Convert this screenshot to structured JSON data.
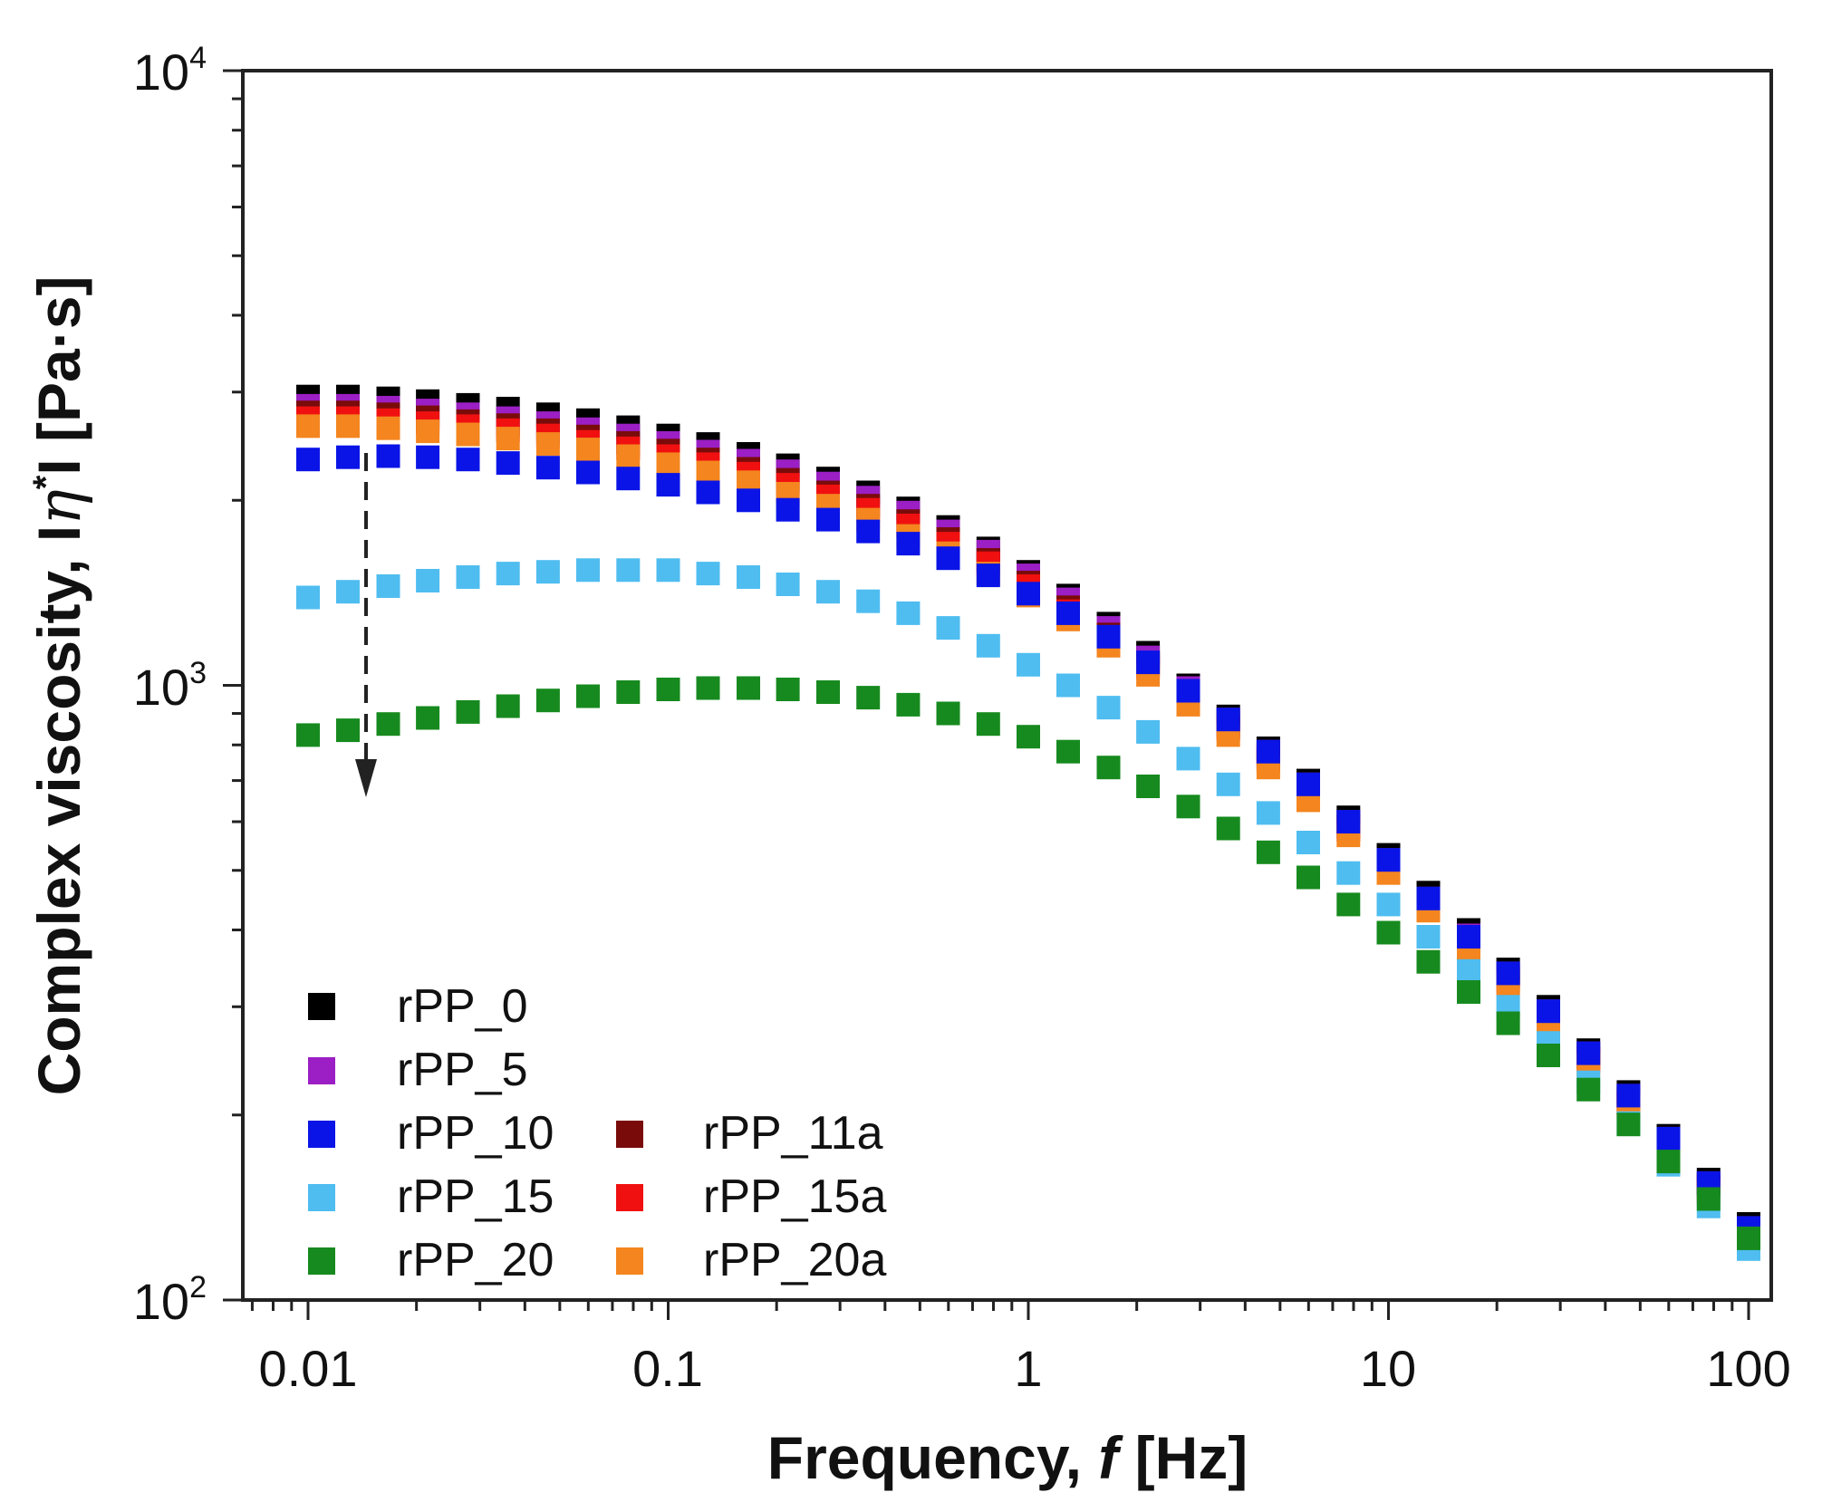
{
  "chart_data": {
    "type": "scatter",
    "xscale": "log",
    "yscale": "log",
    "xlim": [
      0.007,
      110
    ],
    "ylim": [
      100,
      10000
    ],
    "xlabel_main": "Frequency, ",
    "xlabel_var": "f",
    "xlabel_unit": " [Hz]",
    "ylabel_prefix": "Complex viscosity, I",
    "ylabel_eta": "η",
    "ylabel_star": "*",
    "ylabel_suffix": "I [Pa·s]",
    "x_ticks": [
      {
        "value": 0.01,
        "label": "0.01"
      },
      {
        "value": 0.1,
        "label": "0.1"
      },
      {
        "value": 1,
        "label": "1"
      },
      {
        "value": 10,
        "label": "10"
      },
      {
        "value": 100,
        "label": "100"
      }
    ],
    "y_ticks": [
      {
        "value": 100,
        "base": "10",
        "exp": "2"
      },
      {
        "value": 1000,
        "base": "10",
        "exp": "3"
      },
      {
        "value": 10000,
        "base": "10",
        "exp": "4"
      }
    ],
    "x": [
      0.01,
      0.0129,
      0.0167,
      0.0215,
      0.0278,
      0.0359,
      0.0464,
      0.0599,
      0.0774,
      0.1,
      0.129,
      0.167,
      0.215,
      0.278,
      0.359,
      0.464,
      0.599,
      0.774,
      1.0,
      1.29,
      1.67,
      2.15,
      2.78,
      3.59,
      4.64,
      5.99,
      7.74,
      10.0,
      12.9,
      16.7,
      21.5,
      27.8,
      35.9,
      46.4,
      59.9,
      77.4,
      100
    ],
    "series": [
      {
        "name": "rPP_0",
        "color": "#000000",
        "values": [
          2950,
          2950,
          2930,
          2900,
          2860,
          2820,
          2760,
          2700,
          2630,
          2550,
          2470,
          2380,
          2280,
          2170,
          2060,
          1940,
          1810,
          1670,
          1530,
          1400,
          1260,
          1130,
          1000,
          890,
          790,
          700,
          610,
          530,
          460,
          400,
          345,
          300,
          255,
          218,
          185,
          157,
          133
        ]
      },
      {
        "name": "rPP_5",
        "color": "#9b1fc4",
        "values": [
          2850,
          2850,
          2830,
          2800,
          2760,
          2720,
          2670,
          2610,
          2550,
          2480,
          2400,
          2320,
          2230,
          2130,
          2020,
          1910,
          1780,
          1650,
          1510,
          1380,
          1240,
          1110,
          990,
          880,
          780,
          690,
          600,
          520,
          450,
          392,
          340,
          295,
          252,
          215,
          183,
          155,
          131
        ]
      },
      {
        "name": "rPP_10",
        "color": "#0a14e6",
        "values": [
          2330,
          2350,
          2360,
          2350,
          2330,
          2300,
          2260,
          2220,
          2170,
          2120,
          2060,
          2000,
          1930,
          1860,
          1780,
          1700,
          1610,
          1510,
          1410,
          1310,
          1200,
          1090,
          980,
          880,
          780,
          690,
          600,
          520,
          450,
          390,
          340,
          295,
          252,
          215,
          183,
          155,
          131
        ]
      },
      {
        "name": "rPP_15",
        "color": "#4fbdf0",
        "values": [
          1390,
          1420,
          1450,
          1480,
          1500,
          1520,
          1530,
          1540,
          1540,
          1540,
          1520,
          1500,
          1460,
          1420,
          1370,
          1310,
          1240,
          1160,
          1080,
          1000,
          920,
          840,
          760,
          690,
          620,
          555,
          495,
          440,
          390,
          343,
          300,
          262,
          226,
          194,
          166,
          142,
          121
        ]
      },
      {
        "name": "rPP_20",
        "color": "#168a1e",
        "values": [
          830,
          845,
          865,
          885,
          905,
          925,
          945,
          960,
          975,
          985,
          990,
          990,
          985,
          975,
          955,
          930,
          900,
          865,
          825,
          780,
          735,
          685,
          635,
          585,
          535,
          487,
          440,
          396,
          355,
          317,
          282,
          250,
          220,
          193,
          168,
          146,
          126
        ]
      },
      {
        "name": "rPP_11a",
        "color": "#7a0b0b",
        "values": [
          2780,
          2780,
          2760,
          2730,
          2690,
          2650,
          2600,
          2540,
          2480,
          2410,
          2330,
          2250,
          2160,
          2060,
          1960,
          1850,
          1730,
          1600,
          1470,
          1340,
          1210,
          1085,
          965,
          860,
          765,
          675,
          590,
          510,
          443,
          385,
          335,
          290,
          248,
          212,
          180,
          153,
          130
        ]
      },
      {
        "name": "rPP_15a",
        "color": "#f01010",
        "values": [
          2720,
          2720,
          2700,
          2670,
          2640,
          2600,
          2550,
          2490,
          2430,
          2360,
          2290,
          2210,
          2120,
          2030,
          1930,
          1820,
          1700,
          1580,
          1450,
          1320,
          1195,
          1070,
          955,
          850,
          755,
          665,
          582,
          505,
          438,
          380,
          330,
          285,
          245,
          209,
          178,
          151,
          128
        ]
      },
      {
        "name": "rPP_20a",
        "color": "#f4851f",
        "values": [
          2640,
          2640,
          2620,
          2590,
          2560,
          2520,
          2470,
          2420,
          2360,
          2290,
          2220,
          2140,
          2050,
          1960,
          1860,
          1750,
          1640,
          1520,
          1400,
          1280,
          1160,
          1040,
          930,
          830,
          735,
          650,
          570,
          495,
          430,
          373,
          325,
          281,
          241,
          206,
          175,
          149,
          127
        ]
      }
    ],
    "legend_placement": "bottom-left",
    "annotation": "dashed downward arrow indicating decreasing viscosity with filler content"
  }
}
